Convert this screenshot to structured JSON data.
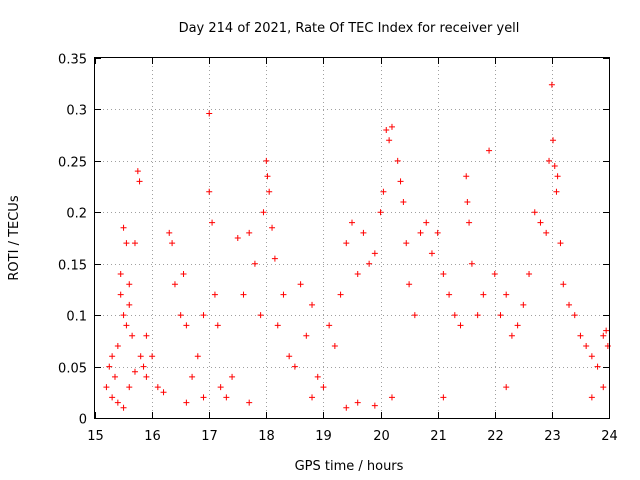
{
  "chart_data": {
    "type": "scatter",
    "title": "Day 214 of 2021, Rate Of TEC Index for receiver yell",
    "xlabel": "GPS time / hours",
    "ylabel": "ROTI / TECUs",
    "xlim": [
      15,
      24
    ],
    "ylim": [
      0,
      0.35
    ],
    "x_ticks": [
      15,
      16,
      17,
      18,
      19,
      20,
      21,
      22,
      23,
      24
    ],
    "y_ticks": [
      0,
      0.05,
      0.1,
      0.15,
      0.2,
      0.25,
      0.3,
      0.35
    ],
    "x_tick_labels": [
      "15",
      "16",
      "17",
      "18",
      "19",
      "20",
      "21",
      "22",
      "23",
      "24"
    ],
    "y_tick_labels": [
      "0",
      "0.05",
      "0.1",
      "0.15",
      "0.2",
      "0.25",
      "0.3",
      "0.35"
    ],
    "grid": true,
    "marker": "+",
    "color": "#ff0000",
    "series": [
      {
        "name": "ROTI",
        "points": [
          [
            15.2,
            0.03
          ],
          [
            15.25,
            0.05
          ],
          [
            15.3,
            0.06
          ],
          [
            15.35,
            0.04
          ],
          [
            15.4,
            0.07
          ],
          [
            15.45,
            0.12
          ],
          [
            15.5,
            0.1
          ],
          [
            15.55,
            0.09
          ],
          [
            15.6,
            0.13
          ],
          [
            15.65,
            0.08
          ],
          [
            15.7,
            0.17
          ],
          [
            15.75,
            0.24
          ],
          [
            15.78,
            0.23
          ],
          [
            15.8,
            0.06
          ],
          [
            15.85,
            0.05
          ],
          [
            15.9,
            0.04
          ],
          [
            15.5,
            0.185
          ],
          [
            15.55,
            0.17
          ],
          [
            15.45,
            0.14
          ],
          [
            15.6,
            0.11
          ],
          [
            15.3,
            0.02
          ],
          [
            15.4,
            0.015
          ],
          [
            15.5,
            0.01
          ],
          [
            15.6,
            0.03
          ],
          [
            15.7,
            0.045
          ],
          [
            15.9,
            0.08
          ],
          [
            16.0,
            0.06
          ],
          [
            16.1,
            0.03
          ],
          [
            16.2,
            0.025
          ],
          [
            16.3,
            0.18
          ],
          [
            16.35,
            0.17
          ],
          [
            16.4,
            0.13
          ],
          [
            16.5,
            0.1
          ],
          [
            16.55,
            0.14
          ],
          [
            16.6,
            0.09
          ],
          [
            16.7,
            0.04
          ],
          [
            16.8,
            0.06
          ],
          [
            16.9,
            0.1
          ],
          [
            17.0,
            0.22
          ],
          [
            17.0,
            0.296
          ],
          [
            17.05,
            0.19
          ],
          [
            17.1,
            0.12
          ],
          [
            17.15,
            0.09
          ],
          [
            17.2,
            0.03
          ],
          [
            17.3,
            0.02
          ],
          [
            17.4,
            0.04
          ],
          [
            17.5,
            0.175
          ],
          [
            17.6,
            0.12
          ],
          [
            17.7,
            0.18
          ],
          [
            17.8,
            0.15
          ],
          [
            17.9,
            0.1
          ],
          [
            17.95,
            0.2
          ],
          [
            18.0,
            0.25
          ],
          [
            18.02,
            0.235
          ],
          [
            18.05,
            0.22
          ],
          [
            18.1,
            0.185
          ],
          [
            18.15,
            0.155
          ],
          [
            18.2,
            0.09
          ],
          [
            18.3,
            0.12
          ],
          [
            18.4,
            0.06
          ],
          [
            18.5,
            0.05
          ],
          [
            18.6,
            0.13
          ],
          [
            18.7,
            0.08
          ],
          [
            18.8,
            0.11
          ],
          [
            18.9,
            0.04
          ],
          [
            19.0,
            0.03
          ],
          [
            19.1,
            0.09
          ],
          [
            19.2,
            0.07
          ],
          [
            19.3,
            0.12
          ],
          [
            19.4,
            0.17
          ],
          [
            19.5,
            0.19
          ],
          [
            19.6,
            0.14
          ],
          [
            19.7,
            0.18
          ],
          [
            19.8,
            0.15
          ],
          [
            19.9,
            0.16
          ],
          [
            20.0,
            0.2
          ],
          [
            20.05,
            0.22
          ],
          [
            20.1,
            0.28
          ],
          [
            20.15,
            0.27
          ],
          [
            20.2,
            0.283
          ],
          [
            20.3,
            0.25
          ],
          [
            20.35,
            0.23
          ],
          [
            20.4,
            0.21
          ],
          [
            20.45,
            0.17
          ],
          [
            20.5,
            0.13
          ],
          [
            20.6,
            0.1
          ],
          [
            20.7,
            0.18
          ],
          [
            20.8,
            0.19
          ],
          [
            20.9,
            0.16
          ],
          [
            21.0,
            0.18
          ],
          [
            21.1,
            0.14
          ],
          [
            21.2,
            0.12
          ],
          [
            21.3,
            0.1
          ],
          [
            21.4,
            0.09
          ],
          [
            21.5,
            0.235
          ],
          [
            21.52,
            0.21
          ],
          [
            21.55,
            0.19
          ],
          [
            21.6,
            0.15
          ],
          [
            21.7,
            0.1
          ],
          [
            21.8,
            0.12
          ],
          [
            21.9,
            0.26
          ],
          [
            22.0,
            0.14
          ],
          [
            22.1,
            0.1
          ],
          [
            22.2,
            0.12
          ],
          [
            22.3,
            0.08
          ],
          [
            22.4,
            0.09
          ],
          [
            22.5,
            0.11
          ],
          [
            22.6,
            0.14
          ],
          [
            22.7,
            0.2
          ],
          [
            22.8,
            0.19
          ],
          [
            22.9,
            0.18
          ],
          [
            22.95,
            0.25
          ],
          [
            23.0,
            0.324
          ],
          [
            23.02,
            0.27
          ],
          [
            23.05,
            0.245
          ],
          [
            23.08,
            0.22
          ],
          [
            23.1,
            0.235
          ],
          [
            23.15,
            0.17
          ],
          [
            23.2,
            0.13
          ],
          [
            23.3,
            0.11
          ],
          [
            23.4,
            0.1
          ],
          [
            23.5,
            0.08
          ],
          [
            23.6,
            0.07
          ],
          [
            23.7,
            0.06
          ],
          [
            23.8,
            0.05
          ],
          [
            23.9,
            0.08
          ],
          [
            23.95,
            0.085
          ],
          [
            23.98,
            0.07
          ],
          [
            23.9,
            0.03
          ],
          [
            23.7,
            0.02
          ],
          [
            19.4,
            0.01
          ],
          [
            19.6,
            0.015
          ],
          [
            20.2,
            0.02
          ],
          [
            21.1,
            0.02
          ],
          [
            22.2,
            0.03
          ],
          [
            18.8,
            0.02
          ],
          [
            17.7,
            0.015
          ],
          [
            16.6,
            0.015
          ],
          [
            16.9,
            0.02
          ],
          [
            19.9,
            0.012
          ]
        ]
      }
    ]
  }
}
